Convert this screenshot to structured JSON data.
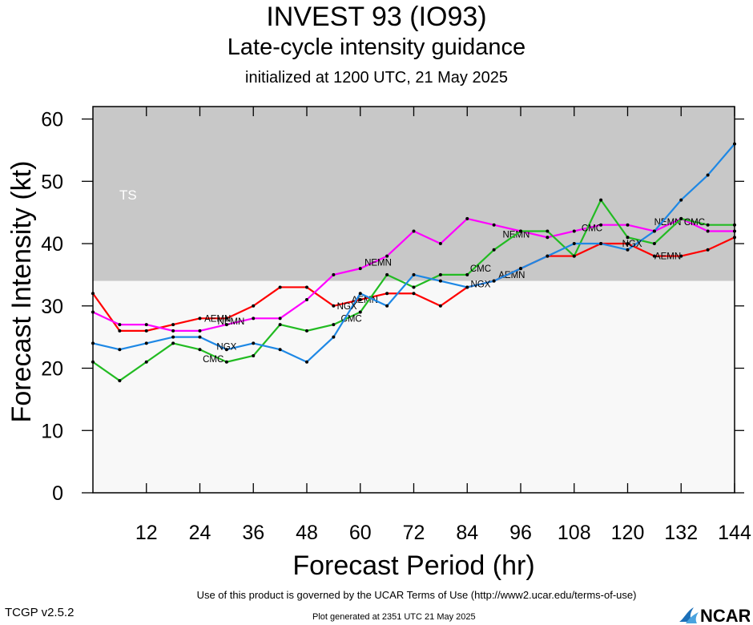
{
  "header": {
    "title": "INVEST 93 (IO93)",
    "subtitle": "Late-cycle intensity guidance",
    "subtitle2": "initialized at 1200 UTC, 21 May 2025"
  },
  "footer": {
    "terms": "Use of this product is governed by the UCAR Terms of Use (http://www2.ucar.edu/terms-of-use)",
    "version": "TCGP v2.5.2",
    "generated": "Plot generated at 2351 UTC   21 May 2025",
    "logo_text": "NCAR"
  },
  "chart_data": {
    "type": "line",
    "xlabel": "Forecast Period (hr)",
    "ylabel": "Forecast Intensity (kt)",
    "xlim": [
      0,
      144
    ],
    "ylim": [
      0,
      62
    ],
    "xticks": [
      12,
      24,
      36,
      48,
      60,
      72,
      84,
      96,
      108,
      120,
      132,
      144
    ],
    "yticks": [
      0,
      10,
      20,
      30,
      40,
      50,
      60
    ],
    "bands": [
      {
        "label": "TS",
        "from": 34,
        "to": 62,
        "color": "#c8c8c8"
      },
      {
        "label": "",
        "from": 0,
        "to": 34,
        "color": "#f8f8f8"
      }
    ],
    "series": [
      {
        "name": "AEMN",
        "color": "#ff0000",
        "x": [
          0,
          6,
          12,
          18,
          24,
          30,
          36,
          42,
          48,
          54,
          60,
          66,
          72,
          78,
          84,
          90,
          96,
          102,
          108,
          114,
          120,
          126,
          132,
          138,
          144
        ],
        "y": [
          32,
          26,
          26,
          27,
          28,
          28,
          30,
          33,
          33,
          30,
          31,
          32,
          32,
          30,
          33,
          34,
          36,
          38,
          38,
          40,
          40,
          38,
          38,
          39,
          41
        ],
        "labels": [
          {
            "text": "AEMN",
            "x": 28,
            "y": 28
          },
          {
            "text": "AEMN",
            "x": 61,
            "y": 31
          },
          {
            "text": "AEMN",
            "x": 94,
            "y": 35
          },
          {
            "text": "AEMN",
            "x": 129,
            "y": 38
          }
        ]
      },
      {
        "name": "NEMN",
        "color": "#ff00ff",
        "x": [
          0,
          6,
          12,
          18,
          24,
          30,
          36,
          42,
          48,
          54,
          60,
          66,
          72,
          78,
          84,
          90,
          96,
          102,
          108,
          114,
          120,
          126,
          132,
          138,
          144
        ],
        "y": [
          29,
          27,
          27,
          26,
          26,
          27,
          28,
          28,
          31,
          35,
          36,
          38,
          42,
          40,
          44,
          43,
          42,
          41,
          42,
          43,
          43,
          42,
          44,
          42,
          42
        ],
        "labels": [
          {
            "text": "NEMN",
            "x": 31,
            "y": 27.5
          },
          {
            "text": "NEMN",
            "x": 64,
            "y": 37
          },
          {
            "text": "NEMN",
            "x": 95,
            "y": 41.5
          },
          {
            "text": "NEMN",
            "x": 129,
            "y": 43.5
          }
        ]
      },
      {
        "name": "CMC",
        "color": "#22bb22",
        "x": [
          0,
          6,
          12,
          18,
          24,
          30,
          36,
          42,
          48,
          54,
          60,
          66,
          72,
          78,
          84,
          90,
          96,
          102,
          108,
          114,
          120,
          126,
          132,
          138,
          144
        ],
        "y": [
          21,
          18,
          21,
          24,
          23,
          21,
          22,
          27,
          26,
          27,
          29,
          35,
          33,
          35,
          35,
          39,
          42,
          42,
          38,
          47,
          41,
          40,
          44,
          43,
          43
        ],
        "labels": [
          {
            "text": "CMC",
            "x": 27,
            "y": 21.5
          },
          {
            "text": "CMC",
            "x": 58,
            "y": 28
          },
          {
            "text": "CMC",
            "x": 87,
            "y": 36
          },
          {
            "text": "CMC",
            "x": 112,
            "y": 42.5
          },
          {
            "text": "CMC",
            "x": 135,
            "y": 43.5
          }
        ]
      },
      {
        "name": "NGX",
        "color": "#1e88e5",
        "x": [
          0,
          6,
          12,
          18,
          24,
          30,
          36,
          42,
          48,
          54,
          60,
          66,
          72,
          78,
          84,
          90,
          96,
          102,
          108,
          114,
          120,
          126,
          132,
          138,
          144
        ],
        "y": [
          24,
          23,
          24,
          25,
          25,
          23,
          24,
          23,
          21,
          25,
          32,
          30,
          35,
          34,
          33,
          34,
          36,
          38,
          40,
          40,
          39,
          42,
          47,
          51,
          56
        ],
        "labels": [
          {
            "text": "NGX",
            "x": 30,
            "y": 23.5
          },
          {
            "text": "NGX",
            "x": 57,
            "y": 30
          },
          {
            "text": "NGX",
            "x": 87,
            "y": 33.5
          },
          {
            "text": "NGX",
            "x": 121,
            "y": 40
          }
        ]
      }
    ]
  }
}
